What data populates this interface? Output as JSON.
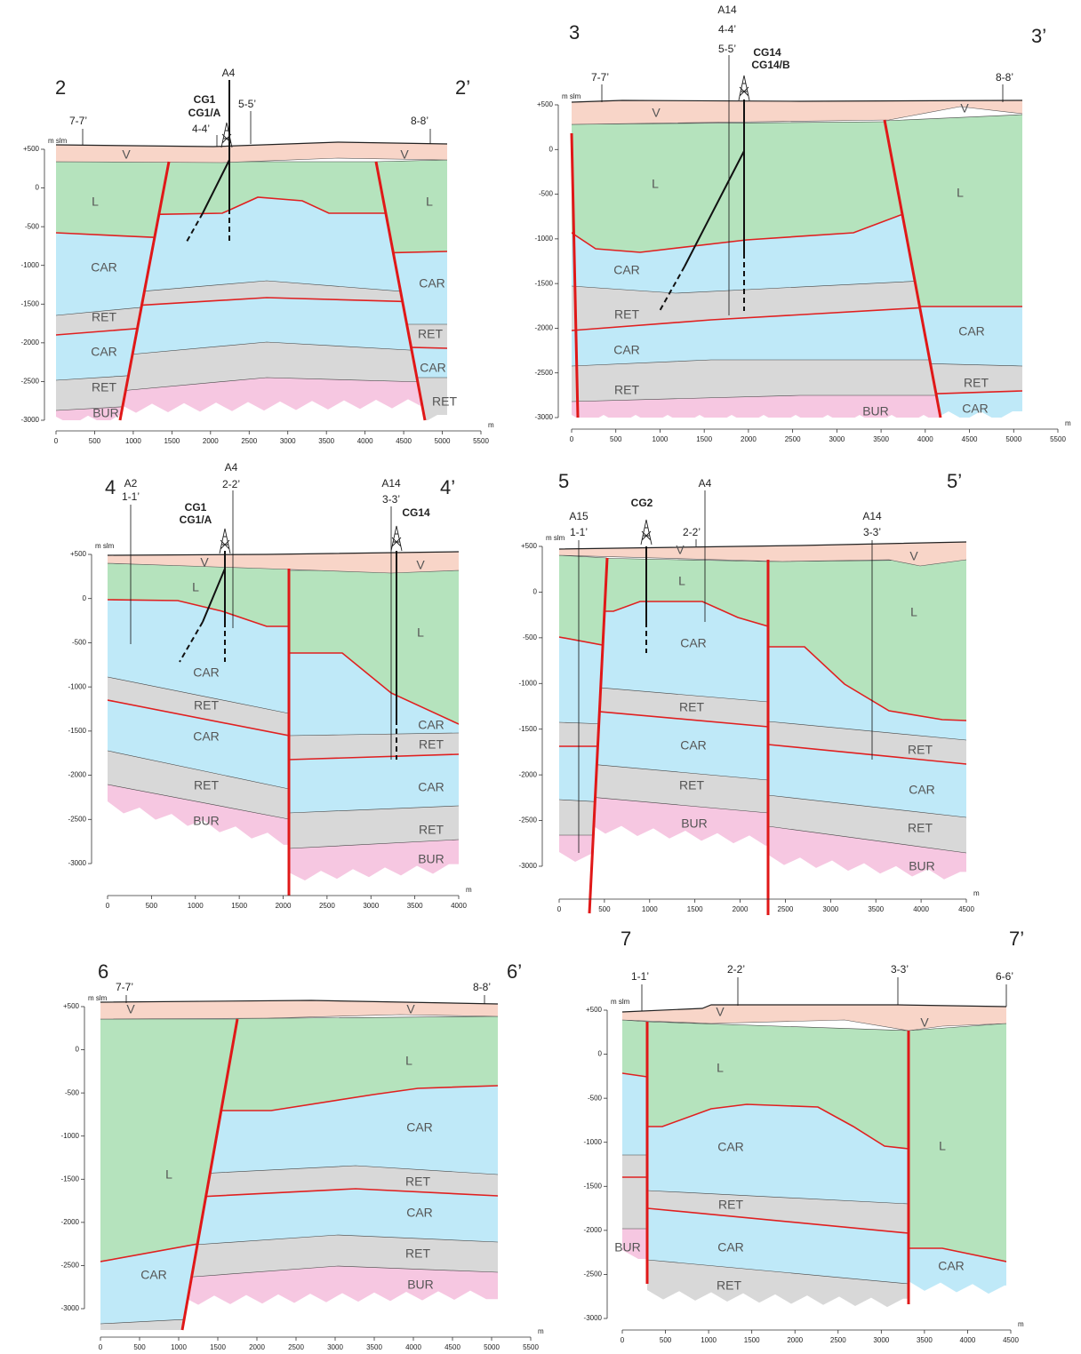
{
  "panels": [
    {
      "start": "2",
      "end": "2’",
      "y_unit": "m slm",
      "x_unit": "m",
      "yticks": [
        {
          "value": 500,
          "label": "+500"
        },
        0,
        -500,
        -1000,
        -1500,
        -2000,
        -2500,
        -3000
      ],
      "xticks": [
        0,
        500,
        1000,
        1500,
        2000,
        2500,
        3000,
        3500,
        4000,
        4500,
        5000,
        5500
      ],
      "units": [
        "V",
        "V",
        "L",
        "L",
        "CAR",
        "CAR",
        "RET",
        "CAR",
        "RET",
        "CAR",
        "RET",
        "RET",
        "BUR"
      ],
      "labels": [
        "A4",
        "4-4’",
        "5-5’",
        "7-7’",
        "8-8’"
      ],
      "wells": [
        "CG1",
        "CG1/A"
      ]
    },
    {
      "start": "3",
      "end": "3’",
      "y_unit": "m slm",
      "x_unit": "m",
      "yticks": [
        {
          "value": 500,
          "label": "+500"
        },
        0,
        -500,
        -1000,
        -1500,
        -2000,
        -2500,
        -3000
      ],
      "xticks": [
        0,
        500,
        1000,
        1500,
        2000,
        2500,
        3000,
        3500,
        4000,
        4500,
        5000,
        5500
      ],
      "units": [
        "V",
        "V",
        "L",
        "L",
        "CAR",
        "RET",
        "CAR",
        "CAR",
        "RET",
        "RET",
        "CAR",
        "BUR"
      ],
      "labels": [
        "A14",
        "4-4’",
        "5-5’",
        "7-7’",
        "8-8’"
      ],
      "wells": [
        "CG14",
        "CG14/B"
      ]
    },
    {
      "start": "4",
      "end": "4’",
      "y_unit": "m slm",
      "x_unit": "m",
      "yticks": [
        {
          "value": 500,
          "label": "+500"
        },
        0,
        -500,
        -1000,
        -1500,
        -2000,
        -2500,
        -3000
      ],
      "xticks": [
        0,
        500,
        1000,
        1500,
        2000,
        2500,
        3000,
        3500,
        4000
      ],
      "units": [
        "V",
        "V",
        "L",
        "L",
        "CAR",
        "RET",
        "CAR",
        "CAR",
        "RET",
        "RET",
        "CAR",
        "BUR",
        "RET",
        "BUR"
      ],
      "labels": [
        "A2",
        "1-1’",
        "A4",
        "2-2’",
        "A14",
        "3-3’"
      ],
      "wells": [
        "CG1",
        "CG1/A",
        "CG14"
      ]
    },
    {
      "start": "5",
      "end": "5’",
      "y_unit": "m slm",
      "x_unit": "m",
      "yticks": [
        {
          "value": 500,
          "label": "+500"
        },
        0,
        -500,
        -1000,
        -1500,
        -2000,
        -2500,
        -3000
      ],
      "xticks": [
        0,
        500,
        1000,
        1500,
        2000,
        2500,
        3000,
        3500,
        4000,
        4500
      ],
      "units": [
        "V",
        "V",
        "L",
        "L",
        "CAR",
        "RET",
        "CAR",
        "RET",
        "RET",
        "CAR",
        "BUR",
        "RET",
        "BUR"
      ],
      "labels": [
        "A15",
        "1-1’",
        "A4",
        "2-2’",
        "A14",
        "3-3’"
      ],
      "wells": [
        "CG2"
      ]
    },
    {
      "start": "6",
      "end": "6’",
      "y_unit": "m slm",
      "x_unit": "m",
      "yticks": [
        {
          "value": 500,
          "label": "+500"
        },
        0,
        -500,
        -1000,
        -1500,
        -2000,
        -2500,
        -3000
      ],
      "xticks": [
        0,
        500,
        1000,
        1500,
        2000,
        2500,
        3000,
        3500,
        4000,
        4500,
        5000,
        5500
      ],
      "units": [
        "V",
        "V",
        "L",
        "CAR",
        "L",
        "RET",
        "CAR",
        "RET",
        "BUR",
        "CAR"
      ],
      "labels": [
        "7-7’",
        "8-8’"
      ],
      "wells": []
    },
    {
      "start": "7",
      "end": "7’",
      "y_unit": "m slm",
      "x_unit": "m",
      "yticks": [
        {
          "value": 500,
          "label": "+500"
        },
        0,
        -500,
        -1000,
        -1500,
        -2000,
        -2500,
        -3000
      ],
      "xticks": [
        0,
        500,
        1000,
        1500,
        2000,
        2500,
        3000,
        3500,
        4000,
        4500
      ],
      "units": [
        "V",
        "V",
        "L",
        "L",
        "CAR",
        "RET",
        "CAR",
        "BUR",
        "CAR",
        "RET"
      ],
      "labels": [
        "1-1’",
        "2-2’",
        "3-3’",
        "6-6’"
      ],
      "wells": []
    }
  ]
}
